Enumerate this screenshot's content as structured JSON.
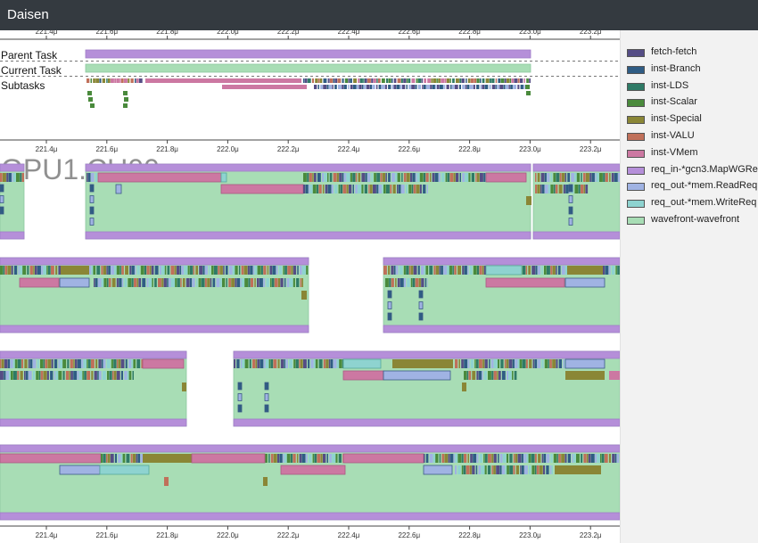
{
  "app": {
    "title": "Daisen"
  },
  "axis": {
    "ticks": [
      "221.4μ",
      "221.6μ",
      "221.8μ",
      "222.0μ",
      "222.2μ",
      "222.4μ",
      "222.6μ",
      "222.8μ",
      "223.0μ",
      "223.2μ"
    ]
  },
  "task_view": {
    "parent_task_label": "Parent Task",
    "current_task_label": "Current Task",
    "subtasks_label": "Subtasks"
  },
  "component_view": {
    "component_name": "GPU1.CU00"
  },
  "legend": {
    "items": [
      {
        "label": "fetch-fetch",
        "color": "#554d85"
      },
      {
        "label": "inst-Branch",
        "color": "#2f5c84"
      },
      {
        "label": "inst-LDS",
        "color": "#2f7a66"
      },
      {
        "label": "inst-Scalar",
        "color": "#4a8a3c"
      },
      {
        "label": "inst-Special",
        "color": "#8a8636"
      },
      {
        "label": "inst-VALU",
        "color": "#c0705a"
      },
      {
        "label": "inst-VMem",
        "color": "#cc78a2"
      },
      {
        "label": "req_in-*gcn3.MapWGReq",
        "color": "#b58fd9"
      },
      {
        "label": "req_out-*mem.ReadReq",
        "color": "#a0b3e3"
      },
      {
        "label": "req_out-*mem.WriteReq",
        "color": "#8ed3d0"
      },
      {
        "label": "wavefront-wavefront",
        "color": "#a8ddb5"
      }
    ]
  }
}
